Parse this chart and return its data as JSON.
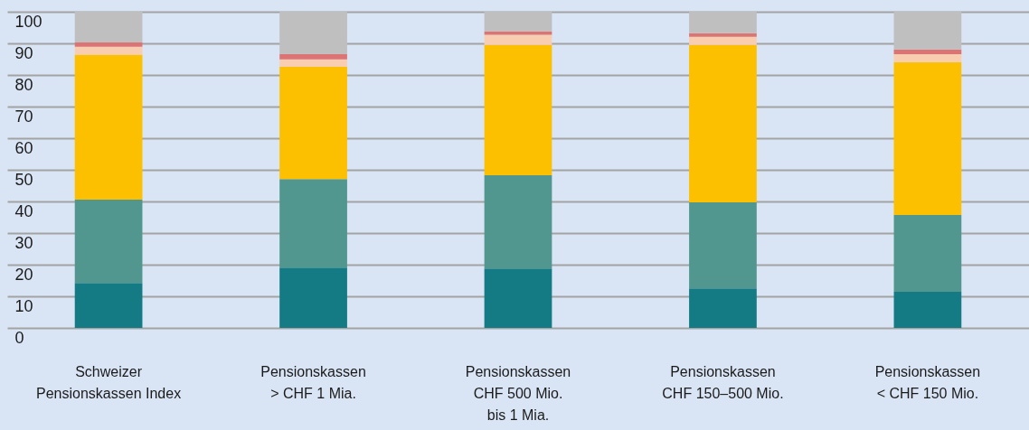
{
  "chart_data": {
    "type": "bar",
    "stacked": true,
    "categories": [
      "Schweizer\nPensionskassen Index",
      "Pensionskassen\n> CHF 1 Mia.",
      "Pensionskassen\nCHF 500 Mio.\nbis 1 Mia.",
      "Pensionskassen\nCHF 150–500 Mio.",
      "Pensionskassen\n< CHF 150 Mio."
    ],
    "series": [
      {
        "color": "#147a84",
        "values": [
          14.2,
          19.1,
          18.8,
          12.5,
          11.4
        ]
      },
      {
        "color": "#51978f",
        "values": [
          26.4,
          28.0,
          29.5,
          27.2,
          24.3
        ]
      },
      {
        "color": "#fcc000",
        "values": [
          45.8,
          35.5,
          41.2,
          49.8,
          48.4
        ]
      },
      {
        "color": "#f9cdb0",
        "values": [
          2.5,
          2.3,
          3.2,
          2.6,
          2.5
        ]
      },
      {
        "color": "#dc7474",
        "values": [
          1.4,
          1.7,
          1.1,
          1.1,
          1.5
        ]
      },
      {
        "color": "#bfbfbf",
        "values": [
          9.7,
          13.4,
          6.2,
          6.8,
          11.9
        ]
      }
    ],
    "ylim": [
      0,
      100
    ],
    "yticks": [
      0,
      10,
      20,
      30,
      40,
      50,
      60,
      70,
      80,
      90,
      100
    ],
    "grid": "y"
  }
}
